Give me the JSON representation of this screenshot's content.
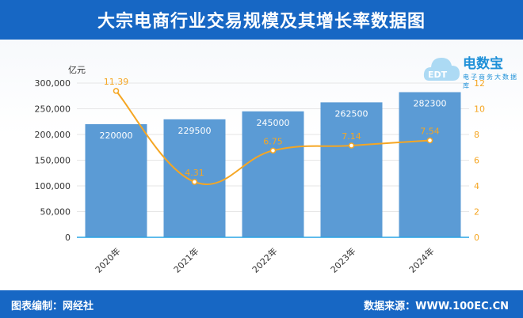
{
  "title": "大宗电商行业交易规模及其增长率数据图",
  "footer": {
    "left": "图表编制：网经社",
    "right": "数据来源：WWW.100EC.CN"
  },
  "logo": {
    "name": "电数宝",
    "subtitle": "电子商务大数据库",
    "mark": "EDT"
  },
  "chart_data": {
    "type": "bar",
    "categories": [
      "2020年",
      "2021年",
      "2022年",
      "2023年",
      "2024年"
    ],
    "y_unit_label": "亿元",
    "series": [
      {
        "values": [
          220000,
          229500,
          245000,
          262500,
          282300
        ],
        "kind": "bar",
        "axis": "left",
        "color": "#5b9bd5"
      },
      {
        "values": [
          11.39,
          4.31,
          6.75,
          7.14,
          7.54
        ],
        "kind": "line",
        "axis": "right",
        "color": "#f5a623"
      }
    ],
    "y_left": {
      "min": 0,
      "max": 300000,
      "ticks": [
        "0",
        "50,000",
        "100,000",
        "150,000",
        "200,000",
        "250,000",
        "300,000"
      ]
    },
    "y_right": {
      "min": 0,
      "max": 12,
      "ticks": [
        "0",
        "2",
        "4",
        "6",
        "8",
        "10",
        "12"
      ]
    },
    "grid": true,
    "legend": "none"
  }
}
